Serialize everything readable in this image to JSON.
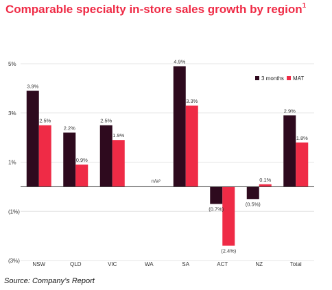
{
  "chart_data": {
    "type": "bar",
    "title": "Comparable specialty in-store sales growth by region",
    "title_footnote": "1",
    "categories": [
      "NSW",
      "QLD",
      "VIC",
      "WA",
      "SA",
      "ACT",
      "NZ",
      "Total"
    ],
    "series": [
      {
        "name": "3 months",
        "color": "#2e0a1e",
        "values": [
          3.9,
          2.2,
          2.5,
          null,
          4.9,
          -0.7,
          -0.5,
          2.9
        ],
        "labels": [
          "3.9%",
          "2.2%",
          "2.5%",
          "",
          "4.9%",
          "(0.7%)",
          "(0.5%)",
          "2.9%"
        ]
      },
      {
        "name": "MAT",
        "color": "#ef2b46",
        "values": [
          2.5,
          0.9,
          1.9,
          null,
          3.3,
          -2.4,
          0.1,
          1.8
        ],
        "labels": [
          "2.5%",
          "0.9%",
          "1.9%",
          "",
          "3.3%",
          "(2.4%)",
          "0.1%",
          "1.8%"
        ]
      }
    ],
    "na_label": "n/a³",
    "yticks": [
      {
        "value": 5,
        "label": "5%"
      },
      {
        "value": 3,
        "label": "3%"
      },
      {
        "value": 1,
        "label": "1%"
      },
      {
        "value": -1,
        "label": "(1%)"
      },
      {
        "value": -3,
        "label": "(3%)"
      }
    ],
    "ylim": [
      -3,
      5
    ],
    "grid": true,
    "legend_position": "top-right"
  },
  "source": "Source: Company’s Report"
}
